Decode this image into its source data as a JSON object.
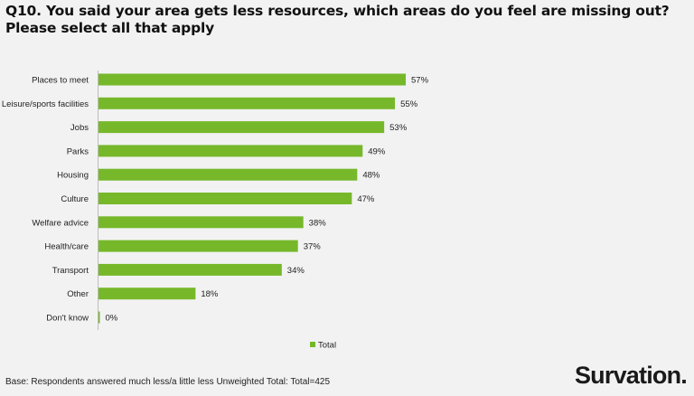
{
  "title": "Q10. You said your area gets less resources, which areas do you feel are missing out? Please select all that apply",
  "base_note": "Base: Respondents answered much less/a little less Unweighted Total: Total=425",
  "brand": "Survation.",
  "colors": {
    "bar": "#76b82a",
    "background": "#f2f2f2"
  },
  "chart_data": {
    "type": "bar",
    "orientation": "horizontal",
    "categories": [
      "Places to meet",
      "Leisure/sports facilities",
      "Jobs",
      "Parks",
      "Housing",
      "Culture",
      "Welfare advice",
      "Health/care",
      "Transport",
      "Other",
      "Don't know"
    ],
    "series": [
      {
        "name": "Total",
        "values": [
          57,
          55,
          53,
          49,
          48,
          47,
          38,
          37,
          34,
          18,
          0
        ],
        "labels": [
          "57%",
          "55%",
          "53%",
          "49%",
          "48%",
          "47%",
          "38%",
          "37%",
          "34%",
          "18%",
          "0%"
        ]
      }
    ],
    "value_unit": "%",
    "legend_position": "bottom",
    "grid": false
  }
}
